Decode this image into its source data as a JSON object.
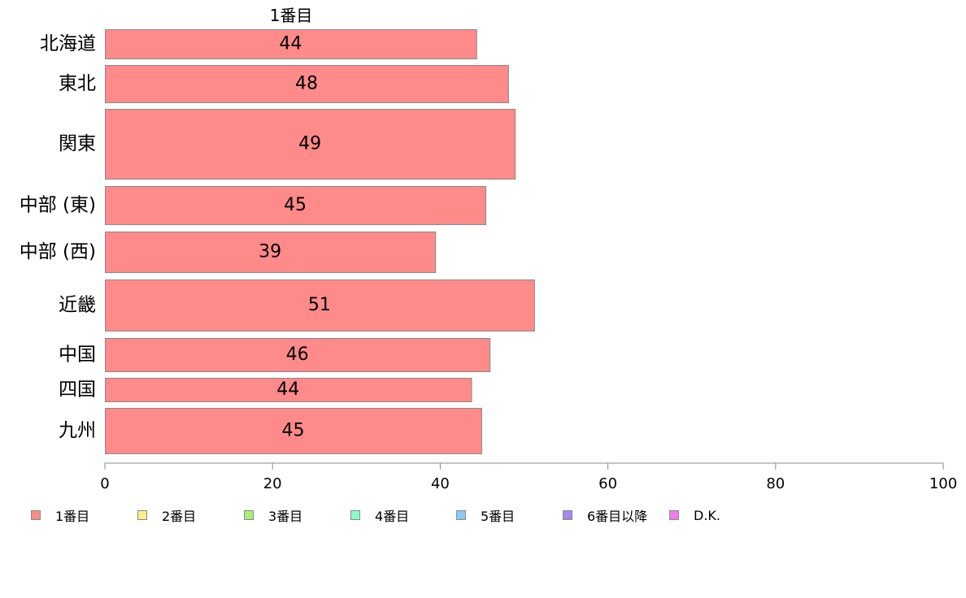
{
  "chart_data": {
    "type": "bar",
    "orientation": "horizontal",
    "stacked": true,
    "top_label": "1番目",
    "categories": [
      "北海道",
      "東北",
      "関東",
      "中部 (東)",
      "中部 (西)",
      "近畿",
      "中国",
      "四国",
      "九州"
    ],
    "series": [
      {
        "name": "1番目",
        "values": [
          44.3,
          48.1,
          48.9,
          45.4,
          39.4,
          51.2,
          45.9,
          43.7,
          44.9
        ],
        "labels": [
          "44",
          "48",
          "49",
          "45",
          "39",
          "51",
          "46",
          "44",
          "45"
        ]
      }
    ],
    "xlim": [
      0,
      100
    ],
    "xticks": [
      "0",
      "20",
      "40",
      "60",
      "80",
      "100"
    ],
    "legend": [
      "1番目",
      "2番目",
      "3番目",
      "4番目",
      "5番目",
      "6番目以降",
      "D.K."
    ],
    "legend_placement": "bottom",
    "colors": [
      "#ff8a8a",
      "#ffee8a",
      "#a6f07a",
      "#8afac8",
      "#8ac8f8",
      "#a08af0",
      "#f07af0"
    ],
    "grid": false
  }
}
